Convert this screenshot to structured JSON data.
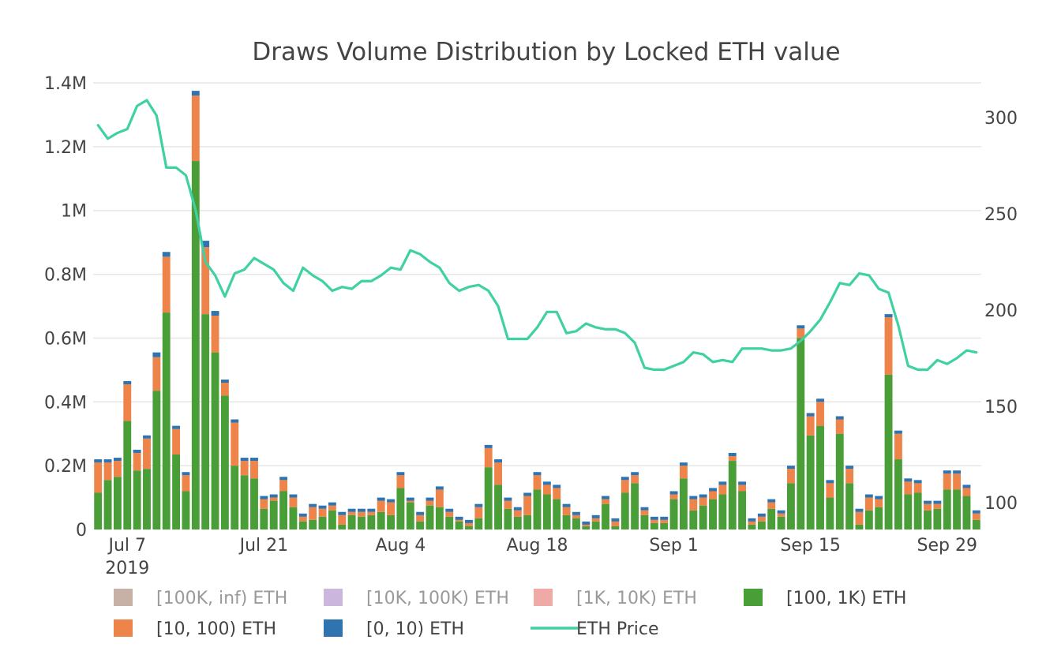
{
  "chart_data": {
    "type": "bar",
    "title": "Draws Volume Distribution by Locked ETH value",
    "stacked": true,
    "x_start": "2019-07-04",
    "x_end": "2019-10-02",
    "x_ticks": [
      {
        "date": "2019-07-07",
        "label": "Jul 7",
        "sublabel": "2019"
      },
      {
        "date": "2019-07-21",
        "label": "Jul 21",
        "sublabel": ""
      },
      {
        "date": "2019-08-04",
        "label": "Aug 4",
        "sublabel": ""
      },
      {
        "date": "2019-08-18",
        "label": "Aug 18",
        "sublabel": ""
      },
      {
        "date": "2019-09-01",
        "label": "Sep 1",
        "sublabel": ""
      },
      {
        "date": "2019-09-15",
        "label": "Sep 15",
        "sublabel": ""
      },
      {
        "date": "2019-09-29",
        "label": "Sep 29",
        "sublabel": ""
      }
    ],
    "y_left": {
      "range": [
        0,
        1400000
      ],
      "ticks": [
        {
          "value": 0,
          "label": "0"
        },
        {
          "value": 200000,
          "label": "0.2M"
        },
        {
          "value": 400000,
          "label": "0.4M"
        },
        {
          "value": 600000,
          "label": "0.6M"
        },
        {
          "value": 800000,
          "label": "0.8M"
        },
        {
          "value": 1000000,
          "label": "1M"
        },
        {
          "value": 1200000,
          "label": "1.2M"
        },
        {
          "value": 1400000,
          "label": "1.4M"
        }
      ]
    },
    "y_right": {
      "range": [
        86,
        318
      ],
      "ticks": [
        {
          "value": 100,
          "label": "100"
        },
        {
          "value": 150,
          "label": "150"
        },
        {
          "value": 200,
          "label": "200"
        },
        {
          "value": 250,
          "label": "250"
        },
        {
          "value": 300,
          "label": "300"
        }
      ]
    },
    "grid": true,
    "legend_position": "bottom",
    "legend": [
      {
        "name": "[100K, inf) ETH",
        "color": "#c7b0a6",
        "kind": "bar",
        "hidden": true
      },
      {
        "name": "[10K, 100K) ETH",
        "color": "#cbb7de",
        "kind": "bar",
        "hidden": true
      },
      {
        "name": "[1K, 10K) ETH",
        "color": "#efa9a7",
        "kind": "bar",
        "hidden": true
      },
      {
        "name": "[100, 1K) ETH",
        "color": "#4a9e38",
        "kind": "bar",
        "hidden": false
      },
      {
        "name": "[10, 100) ETH",
        "color": "#ee8449",
        "kind": "bar",
        "hidden": false
      },
      {
        "name": "[0, 10) ETH",
        "color": "#2f74b0",
        "kind": "bar",
        "hidden": false
      },
      {
        "name": "ETH Price",
        "color": "#3fd1a4",
        "kind": "line",
        "hidden": false
      }
    ],
    "categories": [
      "2019-07-04",
      "2019-07-05",
      "2019-07-06",
      "2019-07-07",
      "2019-07-08",
      "2019-07-09",
      "2019-07-10",
      "2019-07-11",
      "2019-07-12",
      "2019-07-13",
      "2019-07-14",
      "2019-07-15",
      "2019-07-16",
      "2019-07-17",
      "2019-07-18",
      "2019-07-19",
      "2019-07-20",
      "2019-07-21",
      "2019-07-22",
      "2019-07-23",
      "2019-07-24",
      "2019-07-25",
      "2019-07-26",
      "2019-07-27",
      "2019-07-28",
      "2019-07-29",
      "2019-07-30",
      "2019-07-31",
      "2019-08-01",
      "2019-08-02",
      "2019-08-03",
      "2019-08-04",
      "2019-08-05",
      "2019-08-06",
      "2019-08-07",
      "2019-08-08",
      "2019-08-09",
      "2019-08-10",
      "2019-08-11",
      "2019-08-12",
      "2019-08-13",
      "2019-08-14",
      "2019-08-15",
      "2019-08-16",
      "2019-08-17",
      "2019-08-18",
      "2019-08-19",
      "2019-08-20",
      "2019-08-21",
      "2019-08-22",
      "2019-08-23",
      "2019-08-24",
      "2019-08-25",
      "2019-08-26",
      "2019-08-27",
      "2019-08-28",
      "2019-08-29",
      "2019-08-30",
      "2019-08-31",
      "2019-09-01",
      "2019-09-02",
      "2019-09-03",
      "2019-09-04",
      "2019-09-05",
      "2019-09-06",
      "2019-09-07",
      "2019-09-08",
      "2019-09-09",
      "2019-09-10",
      "2019-09-11",
      "2019-09-12",
      "2019-09-13",
      "2019-09-14",
      "2019-09-15",
      "2019-09-16",
      "2019-09-17",
      "2019-09-18",
      "2019-09-19",
      "2019-09-20",
      "2019-09-21",
      "2019-09-22",
      "2019-09-23",
      "2019-09-24",
      "2019-09-25",
      "2019-09-26",
      "2019-09-27",
      "2019-09-28",
      "2019-09-29",
      "2019-09-30",
      "2019-10-01",
      "2019-10-02"
    ],
    "series": [
      {
        "name": "[100, 1K) ETH",
        "color": "#4a9e38",
        "values": [
          115000,
          155000,
          165000,
          340000,
          185000,
          190000,
          435000,
          680000,
          235000,
          120000,
          1155000,
          675000,
          555000,
          420000,
          200000,
          170000,
          160000,
          65000,
          90000,
          120000,
          70000,
          25000,
          30000,
          40000,
          60000,
          15000,
          45000,
          40000,
          45000,
          55000,
          45000,
          130000,
          85000,
          25000,
          75000,
          70000,
          40000,
          25000,
          10000,
          35000,
          195000,
          140000,
          65000,
          40000,
          45000,
          125000,
          110000,
          95000,
          45000,
          35000,
          10000,
          25000,
          80000,
          10000,
          115000,
          145000,
          45000,
          20000,
          20000,
          95000,
          160000,
          60000,
          75000,
          95000,
          110000,
          215000,
          120000,
          15000,
          25000,
          65000,
          40000,
          145000,
          600000,
          295000,
          325000,
          100000,
          300000,
          145000,
          15000,
          60000,
          70000,
          485000,
          220000,
          110000,
          115000,
          60000,
          65000,
          125000,
          125000,
          105000,
          30000
        ]
      },
      {
        "name": "[10, 100) ETH",
        "color": "#ee8449",
        "values": [
          95000,
          55000,
          50000,
          115000,
          55000,
          95000,
          105000,
          175000,
          80000,
          50000,
          205000,
          210000,
          115000,
          40000,
          135000,
          45000,
          55000,
          30000,
          10000,
          35000,
          30000,
          15000,
          40000,
          25000,
          15000,
          30000,
          10000,
          15000,
          10000,
          35000,
          40000,
          40000,
          5000,
          20000,
          15000,
          55000,
          15000,
          5000,
          10000,
          35000,
          60000,
          70000,
          25000,
          20000,
          60000,
          45000,
          30000,
          35000,
          25000,
          10000,
          5000,
          10000,
          15000,
          15000,
          40000,
          25000,
          15000,
          10000,
          10000,
          15000,
          40000,
          35000,
          25000,
          25000,
          30000,
          15000,
          20000,
          10000,
          15000,
          20000,
          10000,
          45000,
          30000,
          60000,
          75000,
          45000,
          45000,
          45000,
          40000,
          40000,
          25000,
          180000,
          80000,
          40000,
          30000,
          20000,
          15000,
          50000,
          50000,
          25000,
          20000
        ]
      },
      {
        "name": "[0, 10) ETH",
        "color": "#2f74b0",
        "values": [
          10000,
          10000,
          10000,
          10000,
          10000,
          10000,
          15000,
          15000,
          10000,
          10000,
          15000,
          20000,
          15000,
          10000,
          10000,
          10000,
          10000,
          10000,
          10000,
          10000,
          10000,
          10000,
          10000,
          10000,
          10000,
          10000,
          10000,
          10000,
          10000,
          10000,
          10000,
          10000,
          10000,
          10000,
          10000,
          10000,
          10000,
          10000,
          10000,
          10000,
          10000,
          10000,
          10000,
          10000,
          10000,
          10000,
          10000,
          10000,
          10000,
          10000,
          10000,
          10000,
          10000,
          10000,
          10000,
          10000,
          10000,
          10000,
          10000,
          10000,
          10000,
          10000,
          10000,
          10000,
          10000,
          10000,
          10000,
          10000,
          10000,
          10000,
          10000,
          10000,
          10000,
          10000,
          10000,
          10000,
          10000,
          10000,
          10000,
          10000,
          10000,
          10000,
          10000,
          10000,
          10000,
          10000,
          10000,
          10000,
          10000,
          10000,
          10000
        ]
      }
    ],
    "line_series": {
      "name": "ETH Price",
      "color": "#3fd1a4",
      "axis": "right",
      "values": [
        296,
        289,
        292,
        294,
        306,
        309,
        301,
        274,
        274,
        270,
        252,
        225,
        218,
        207,
        219,
        221,
        227,
        224,
        221,
        214,
        210,
        222,
        218,
        215,
        210,
        212,
        211,
        215,
        215,
        218,
        222,
        221,
        231,
        229,
        225,
        222,
        214,
        210,
        212,
        213,
        210,
        202,
        185,
        185,
        185,
        191,
        199,
        199,
        188,
        189,
        193,
        191,
        190,
        190,
        188,
        183,
        170,
        169,
        169,
        171,
        173,
        178,
        177,
        173,
        174,
        173,
        180,
        180,
        180,
        179,
        179,
        180,
        184,
        189,
        195,
        204,
        214,
        213,
        219,
        218,
        211,
        209,
        192,
        171,
        169,
        169,
        174,
        172,
        175,
        179,
        178
      ]
    }
  }
}
